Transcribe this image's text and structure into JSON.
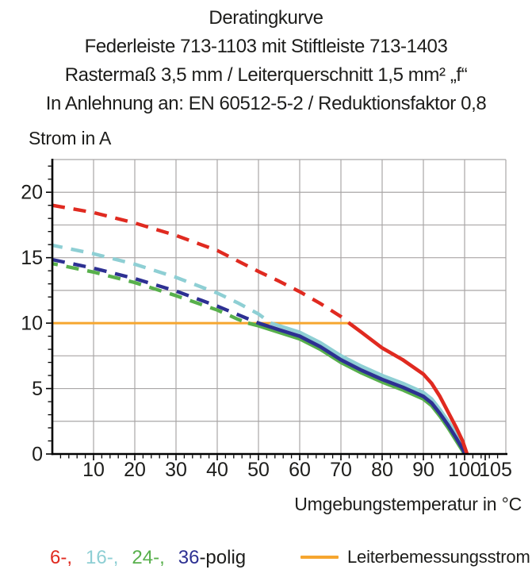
{
  "title": {
    "lines": [
      "Deratingkurve",
      "Federleiste 713-1103 mit Stiftleiste 713-1403",
      "Rastermaß 3,5 mm / Leiterquerschnitt 1,5 mm² „f“",
      "In Anlehnung an: EN 60512-5-2 / Reduktionsfaktor 0,8"
    ]
  },
  "chart_data": {
    "type": "line",
    "title": "Deratingkurve",
    "xlabel": "Umgebungstemperatur in °C",
    "ylabel": "Strom in A",
    "xlim": [
      0,
      110
    ],
    "ylim": [
      0,
      22.5
    ],
    "x_grid_step": 10,
    "y_grid_step": 2.5,
    "x_minor_tick_step": 2,
    "y_minor_tick_step": 1,
    "x_tick_labels": [
      10,
      20,
      30,
      40,
      50,
      60,
      70,
      80,
      90,
      100,
      105
    ],
    "y_tick_labels": [
      0,
      5,
      10,
      15,
      20
    ],
    "grid": true,
    "grid_color": "#a9a6a6",
    "axis_color": "#000000",
    "series": [
      {
        "name": "24-polig",
        "legend_label": "24-,",
        "color": "#58b04c",
        "dash_until_x": 47.5,
        "points": [
          [
            0,
            14.55
          ],
          [
            10,
            13.9
          ],
          [
            20,
            13.1
          ],
          [
            30,
            12.1
          ],
          [
            40,
            11.0
          ],
          [
            45,
            10.3
          ],
          [
            47.5,
            10.0
          ],
          [
            50,
            9.8
          ],
          [
            55,
            9.3
          ],
          [
            60,
            8.8
          ],
          [
            65,
            8.0
          ],
          [
            70,
            7.0
          ],
          [
            75,
            6.2
          ],
          [
            80,
            5.5
          ],
          [
            85,
            4.9
          ],
          [
            90,
            4.2
          ],
          [
            92,
            3.7
          ],
          [
            94,
            2.9
          ],
          [
            96,
            2.0
          ],
          [
            98,
            1.0
          ],
          [
            99.5,
            0.25
          ],
          [
            100,
            0
          ]
        ]
      },
      {
        "name": "16-polig",
        "legend_label": "16-,",
        "color": "#8ecfd4",
        "dash_until_x": 53,
        "points": [
          [
            0,
            15.95
          ],
          [
            10,
            15.3
          ],
          [
            20,
            14.5
          ],
          [
            30,
            13.5
          ],
          [
            40,
            12.3
          ],
          [
            45,
            11.55
          ],
          [
            50,
            10.7
          ],
          [
            53,
            10.0
          ],
          [
            55,
            9.8
          ],
          [
            60,
            9.3
          ],
          [
            65,
            8.5
          ],
          [
            70,
            7.5
          ],
          [
            75,
            6.7
          ],
          [
            80,
            6.0
          ],
          [
            85,
            5.4
          ],
          [
            90,
            4.7
          ],
          [
            92,
            4.2
          ],
          [
            94,
            3.4
          ],
          [
            96,
            2.5
          ],
          [
            98,
            1.5
          ],
          [
            99.5,
            0.6
          ],
          [
            100.4,
            0
          ]
        ]
      },
      {
        "name": "36-polig",
        "legend_label": "36",
        "color": "#2d3092",
        "dash_until_x": 50,
        "points": [
          [
            0,
            14.85
          ],
          [
            10,
            14.2
          ],
          [
            20,
            13.4
          ],
          [
            30,
            12.45
          ],
          [
            40,
            11.3
          ],
          [
            45,
            10.65
          ],
          [
            50,
            10.0
          ],
          [
            55,
            9.5
          ],
          [
            60,
            9.0
          ],
          [
            65,
            8.2
          ],
          [
            70,
            7.2
          ],
          [
            75,
            6.4
          ],
          [
            80,
            5.7
          ],
          [
            85,
            5.1
          ],
          [
            90,
            4.4
          ],
          [
            92,
            3.9
          ],
          [
            94,
            3.1
          ],
          [
            96,
            2.2
          ],
          [
            98,
            1.2
          ],
          [
            99.5,
            0.4
          ],
          [
            100.1,
            0
          ]
        ]
      },
      {
        "name": "6-polig",
        "legend_label": "6-,",
        "color": "#e02a20",
        "dash_until_x": 72,
        "points": [
          [
            0,
            19.0
          ],
          [
            10,
            18.45
          ],
          [
            20,
            17.65
          ],
          [
            30,
            16.7
          ],
          [
            40,
            15.55
          ],
          [
            50,
            13.95
          ],
          [
            55,
            13.2
          ],
          [
            60,
            12.4
          ],
          [
            65,
            11.5
          ],
          [
            70,
            10.5
          ],
          [
            72,
            10.0
          ],
          [
            75,
            9.3
          ],
          [
            80,
            8.1
          ],
          [
            85,
            7.2
          ],
          [
            90,
            6.1
          ],
          [
            92,
            5.4
          ],
          [
            94,
            4.4
          ],
          [
            96,
            3.2
          ],
          [
            98,
            2.0
          ],
          [
            99.5,
            1.0
          ],
          [
            100.6,
            0
          ]
        ]
      }
    ],
    "rated_current": {
      "label": "Leiterbemessungsstrom",
      "value": 10,
      "x_start": 0,
      "x_end": 72,
      "color": "#f6a62f"
    }
  },
  "legend": {
    "pole_items": [
      {
        "label": "6-,",
        "color": "#e02a20"
      },
      {
        "label": "16-,",
        "color": "#8ecfd4"
      },
      {
        "label": "24-,",
        "color": "#58b04c"
      },
      {
        "label": "36",
        "color": "#2d3092"
      }
    ],
    "pole_suffix": "-polig",
    "pole_suffix_color": "#1d1d1b",
    "rated_label": "Leiterbemessungsstrom"
  }
}
